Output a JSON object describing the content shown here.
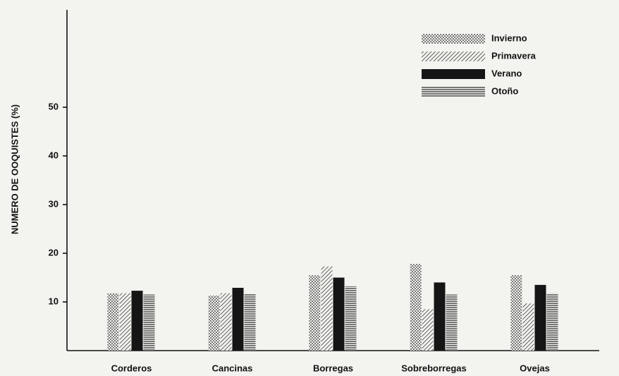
{
  "chart_data": {
    "type": "bar",
    "y_label": "NUMERO DE OOQUISTES (%)",
    "categories": [
      "Corderos",
      "Cancinas",
      "Borregas",
      "Sobreborregas",
      "Ovejas"
    ],
    "series": [
      {
        "name": "Invierno",
        "color": "#222222",
        "values": [
          11.8,
          11.3,
          15.5,
          17.8,
          15.5
        ]
      },
      {
        "name": "Primavera",
        "color": "#222222",
        "values": [
          11.8,
          11.8,
          17.3,
          8.5,
          9.7
        ]
      },
      {
        "name": "Verano",
        "color": "#151515",
        "values": [
          12.3,
          12.9,
          15.0,
          14.0,
          13.5
        ]
      },
      {
        "name": "Otoño",
        "color": "#222222",
        "values": [
          11.5,
          11.7,
          13.2,
          11.5,
          11.8
        ]
      }
    ],
    "ylim": [
      0,
      70
    ],
    "yticks": [
      10,
      20,
      30,
      40,
      50
    ],
    "legend": "upper right"
  }
}
